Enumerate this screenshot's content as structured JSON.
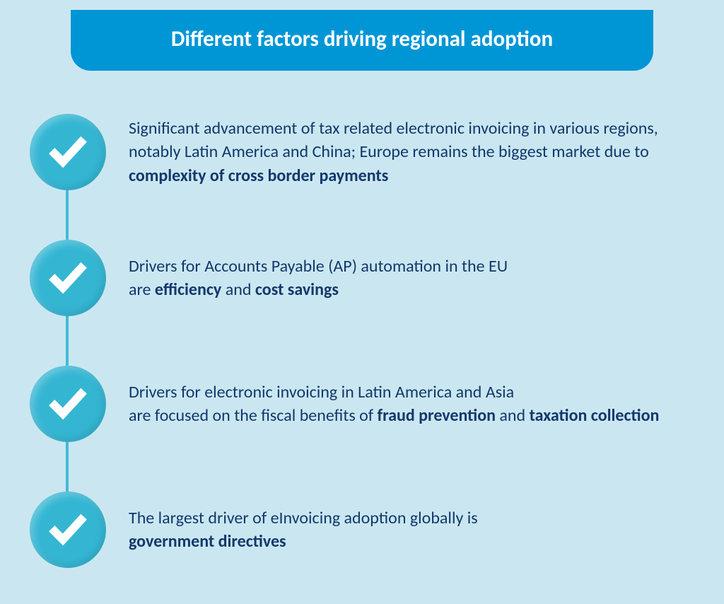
{
  "header": {
    "title": "Different factors driving regional adoption"
  },
  "styling": {
    "background_color": "#cae7f1",
    "banner_color": "#0096d6",
    "banner_text_color": "#ffffff",
    "circle_color": "#34b6d3",
    "connector_color": "#42bcd5",
    "text_color": "#13386b",
    "check_color": "#ffffff",
    "title_fontsize": 31,
    "body_fontsize": 24,
    "circle_diameter": 108
  },
  "items": [
    {
      "html": "Significant advancement of tax related electronic invoicing in various regions, notably Latin America and China; Europe remains the biggest market due to <b>complexity of cross border payments</b>"
    },
    {
      "html": "Drivers for Accounts Payable (AP) automation in the EU<br>are <b>efficiency</b> and <b>cost savings</b>"
    },
    {
      "html": "Drivers for electronic invoicing in Latin America and Asia<br>are focused on the fiscal benefits of <b>fraud prevention</b> and <b>taxation collection</b>"
    },
    {
      "html": "The largest driver of eInvoicing adoption globally is<br><b>government directives</b>"
    }
  ]
}
